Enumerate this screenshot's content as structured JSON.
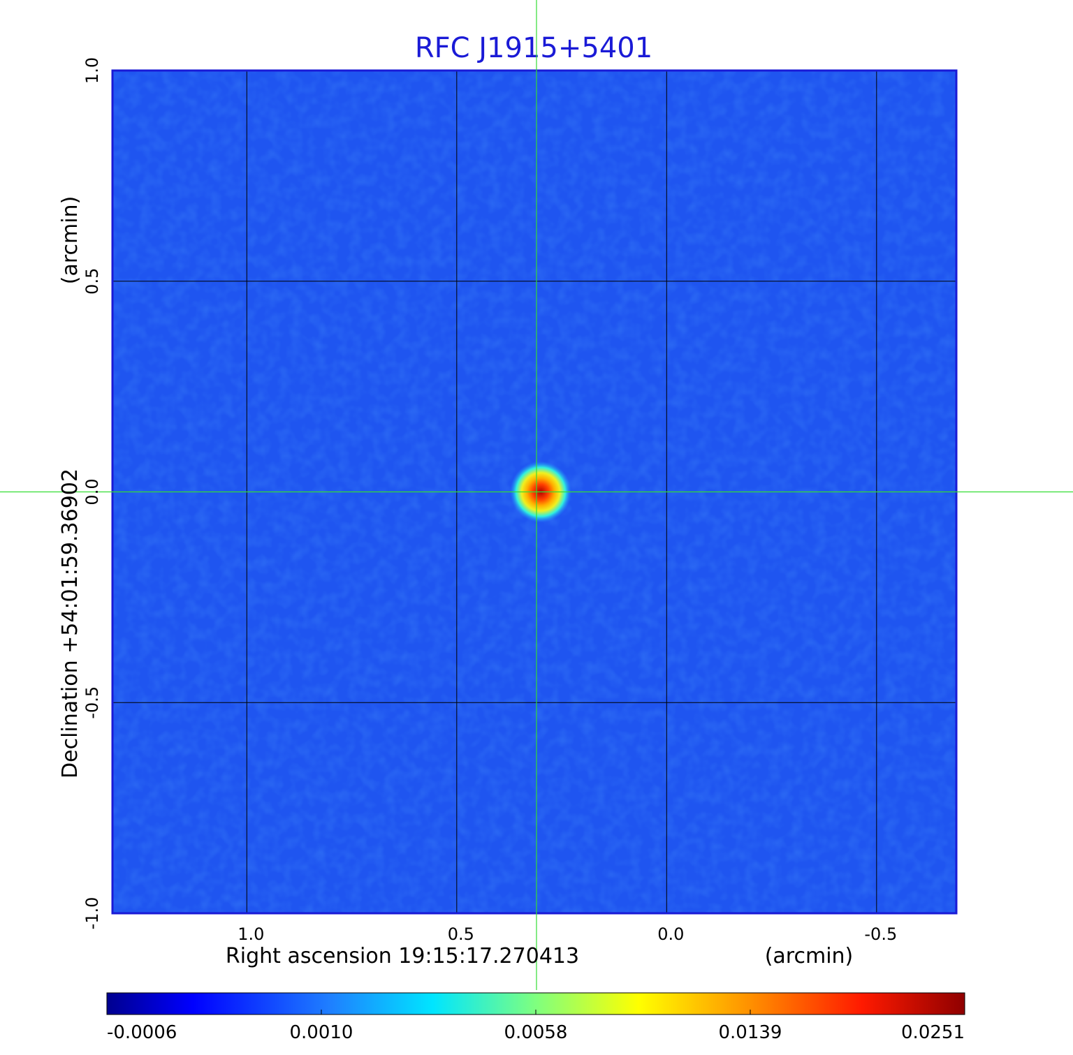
{
  "chart_data": {
    "type": "heatmap",
    "title": "RFC J1915+5401",
    "xlabel": "Right ascension  19:15:17.270413",
    "xunit": "(arcmin)",
    "ylabel": "Declination  +54:01:59.36902",
    "yunit": "(arcmin)",
    "xlim": [
      1.32,
      -0.69
    ],
    "ylim": [
      -1.0,
      1.0
    ],
    "x_ticks": [
      {
        "value": 1.0,
        "label": "1.0"
      },
      {
        "value": 0.5,
        "label": "0.5"
      },
      {
        "value": 0.0,
        "label": "0.0"
      },
      {
        "value": -0.5,
        "label": "-0.5"
      }
    ],
    "y_ticks": [
      {
        "value": 1.0,
        "label": "1.0"
      },
      {
        "value": 0.5,
        "label": "0.5"
      },
      {
        "value": 0.0,
        "label": "0.0"
      },
      {
        "value": -0.5,
        "label": "-0.5"
      },
      {
        "value": -1.0,
        "label": "-1.0"
      }
    ],
    "grid": true,
    "crosshair": {
      "x": 0.31,
      "y": 0.0
    },
    "source": {
      "x": 0.31,
      "y": 0.0,
      "peak": 0.0251
    },
    "colorbar": {
      "colormap": "jet",
      "ticks": [
        "-0.0006",
        "0.0010",
        "0.0058",
        "0.0139",
        "0.0251"
      ]
    },
    "colors": {
      "title": "#1a1ad6",
      "frame": "#1a1ad6",
      "crosshair": "#33dd33",
      "grid": "#000000",
      "background_field": "#1f55f0"
    }
  }
}
